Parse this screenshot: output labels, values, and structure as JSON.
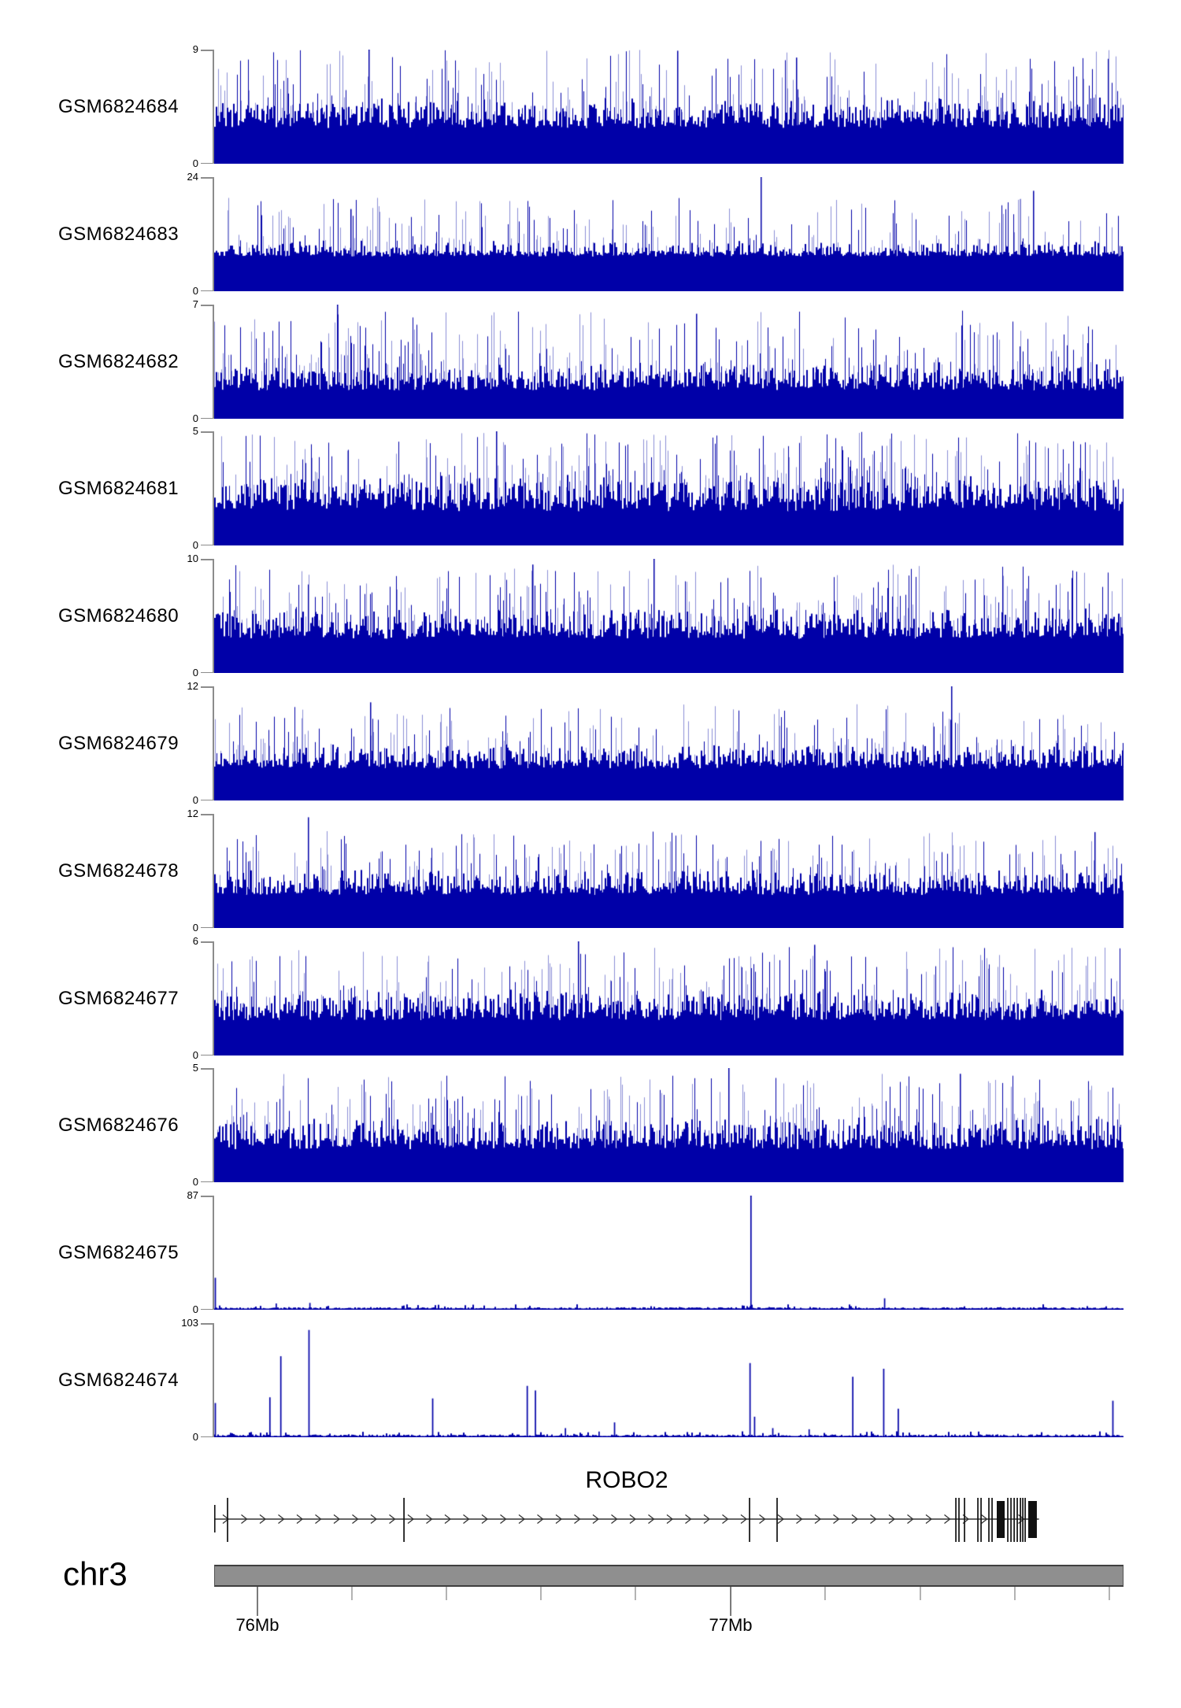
{
  "colors": {
    "signal": "#0000a8",
    "signal_light": "#8b8ed6",
    "axis": "#8c8c8c",
    "gene_line": "#333333",
    "exon": "#111111",
    "chrom_fill": "#8f8f8f",
    "chrom_border": "#3f3f3f",
    "tick_major": "#333333",
    "tick_minor": "#808080"
  },
  "chart_data": {
    "type": "area",
    "subtype": "genome-coverage-tracks",
    "region": {
      "chrom": "chr3",
      "major_ticks": [
        {
          "label": "76Mb",
          "f": 0.0476
        },
        {
          "label": "77Mb",
          "f": 0.568
        }
      ],
      "minor_ticks_f": [
        0.1515,
        0.2554,
        0.3593,
        0.4632,
        0.6718,
        0.7766,
        0.8805,
        0.9844
      ]
    },
    "tracks": [
      {
        "sample": "GSM6824684",
        "ymax": 9,
        "ymin": 0,
        "profile": "dense",
        "seed": 101,
        "base": 0.36,
        "jitter": 0.1,
        "med_prob": 0.55,
        "med_add": 0.18,
        "spike_prob": 0.45,
        "spike_min": 0.45,
        "spike_max": 1.0,
        "light_frac": 0.55,
        "tall_spikes": [
          [
            0.17,
            1.0
          ],
          [
            0.509,
            0.99
          ],
          [
            0.64,
            0.93
          ]
        ]
      },
      {
        "sample": "GSM6824683",
        "ymax": 24,
        "ymin": 0,
        "profile": "dense",
        "seed": 102,
        "base": 0.33,
        "jitter": 0.05,
        "med_prob": 0.32,
        "med_add": 0.1,
        "spike_prob": 0.38,
        "spike_min": 0.38,
        "spike_max": 0.82,
        "light_frac": 0.6,
        "tall_spikes": [
          [
            0.601,
            1.0
          ],
          [
            0.9,
            0.88
          ],
          [
            0.15,
            0.72
          ]
        ]
      },
      {
        "sample": "GSM6824682",
        "ymax": 7,
        "ymin": 0,
        "profile": "dense",
        "seed": 103,
        "base": 0.3,
        "jitter": 0.1,
        "med_prob": 0.55,
        "med_add": 0.15,
        "spike_prob": 0.5,
        "spike_min": 0.4,
        "spike_max": 0.95,
        "light_frac": 0.5,
        "tall_spikes": [
          [
            0.135,
            1.0
          ],
          [
            0.53,
            0.92
          ]
        ]
      },
      {
        "sample": "GSM6824681",
        "ymax": 5,
        "ymin": 0,
        "profile": "dense",
        "seed": 104,
        "base": 0.36,
        "jitter": 0.12,
        "med_prob": 0.6,
        "med_add": 0.2,
        "spike_prob": 0.5,
        "spike_min": 0.5,
        "spike_max": 1.0,
        "light_frac": 0.5,
        "tall_spikes": [
          [
            0.31,
            1.0
          ]
        ]
      },
      {
        "sample": "GSM6824680",
        "ymax": 10,
        "ymin": 0,
        "profile": "dense",
        "seed": 105,
        "base": 0.35,
        "jitter": 0.1,
        "med_prob": 0.55,
        "med_add": 0.18,
        "spike_prob": 0.45,
        "spike_min": 0.45,
        "spike_max": 0.95,
        "light_frac": 0.5,
        "tall_spikes": [
          [
            0.483,
            1.0
          ],
          [
            0.35,
            0.95
          ]
        ]
      },
      {
        "sample": "GSM6824679",
        "ymax": 12,
        "ymin": 0,
        "profile": "dense",
        "seed": 106,
        "base": 0.32,
        "jitter": 0.08,
        "med_prob": 0.5,
        "med_add": 0.15,
        "spike_prob": 0.42,
        "spike_min": 0.4,
        "spike_max": 0.85,
        "light_frac": 0.5,
        "tall_spikes": [
          [
            0.81,
            1.0
          ],
          [
            0.171,
            0.86
          ]
        ]
      },
      {
        "sample": "GSM6824678",
        "ymax": 12,
        "ymin": 0,
        "profile": "dense",
        "seed": 107,
        "base": 0.33,
        "jitter": 0.08,
        "med_prob": 0.5,
        "med_add": 0.15,
        "spike_prob": 0.42,
        "spike_min": 0.4,
        "spike_max": 0.85,
        "light_frac": 0.5,
        "tall_spikes": [
          [
            0.103,
            0.97
          ],
          [
            0.968,
            0.84
          ]
        ]
      },
      {
        "sample": "GSM6824677",
        "ymax": 6,
        "ymin": 0,
        "profile": "dense",
        "seed": 108,
        "base": 0.36,
        "jitter": 0.1,
        "med_prob": 0.55,
        "med_add": 0.18,
        "spike_prob": 0.48,
        "spike_min": 0.45,
        "spike_max": 0.95,
        "light_frac": 0.5,
        "tall_spikes": [
          [
            0.4,
            1.0
          ],
          [
            0.66,
            0.97
          ]
        ]
      },
      {
        "sample": "GSM6824676",
        "ymax": 5,
        "ymin": 0,
        "profile": "dense",
        "seed": 109,
        "base": 0.34,
        "jitter": 0.1,
        "med_prob": 0.55,
        "med_add": 0.18,
        "spike_prob": 0.48,
        "spike_min": 0.45,
        "spike_max": 0.95,
        "light_frac": 0.5,
        "tall_spikes": [
          [
            0.565,
            1.0
          ],
          [
            0.82,
            0.95
          ]
        ]
      },
      {
        "sample": "GSM6824675",
        "ymax": 87,
        "ymin": 0,
        "profile": "sparse",
        "seed": 110,
        "noise": 0.018,
        "peaks": [
          [
            0.001,
            0.28
          ],
          [
            0.068,
            0.055
          ],
          [
            0.105,
            0.06
          ],
          [
            0.59,
            1.0
          ],
          [
            0.737,
            0.1
          ]
        ]
      },
      {
        "sample": "GSM6824674",
        "ymax": 103,
        "ymin": 0,
        "profile": "sparse",
        "seed": 111,
        "noise": 0.02,
        "peaks": [
          [
            0.001,
            0.3
          ],
          [
            0.061,
            0.35
          ],
          [
            0.073,
            0.71
          ],
          [
            0.104,
            0.94
          ],
          [
            0.24,
            0.34
          ],
          [
            0.344,
            0.45
          ],
          [
            0.353,
            0.41
          ],
          [
            0.386,
            0.08
          ],
          [
            0.423,
            0.05
          ],
          [
            0.44,
            0.13
          ],
          [
            0.589,
            0.65
          ],
          [
            0.594,
            0.18
          ],
          [
            0.614,
            0.08
          ],
          [
            0.654,
            0.07
          ],
          [
            0.702,
            0.53
          ],
          [
            0.736,
            0.6
          ],
          [
            0.752,
            0.25
          ],
          [
            0.988,
            0.32
          ]
        ]
      }
    ],
    "gene": {
      "name": "ROBO2",
      "strand": "right",
      "line_end_f": 0.907,
      "exon_start_short_f": 0.0,
      "exons_thin_f": [
        0.0147,
        0.2087,
        0.5887,
        0.619,
        0.8156,
        0.819,
        0.8251,
        0.8398,
        0.8433,
        0.8519,
        0.8554,
        0.8727,
        0.8762,
        0.8797,
        0.8831,
        0.8866,
        0.8892,
        0.8918
      ],
      "exons_thick": [
        {
          "f": 0.8606,
          "w": 0.0087
        },
        {
          "f": 0.8952,
          "w": 0.0095
        }
      ]
    }
  }
}
